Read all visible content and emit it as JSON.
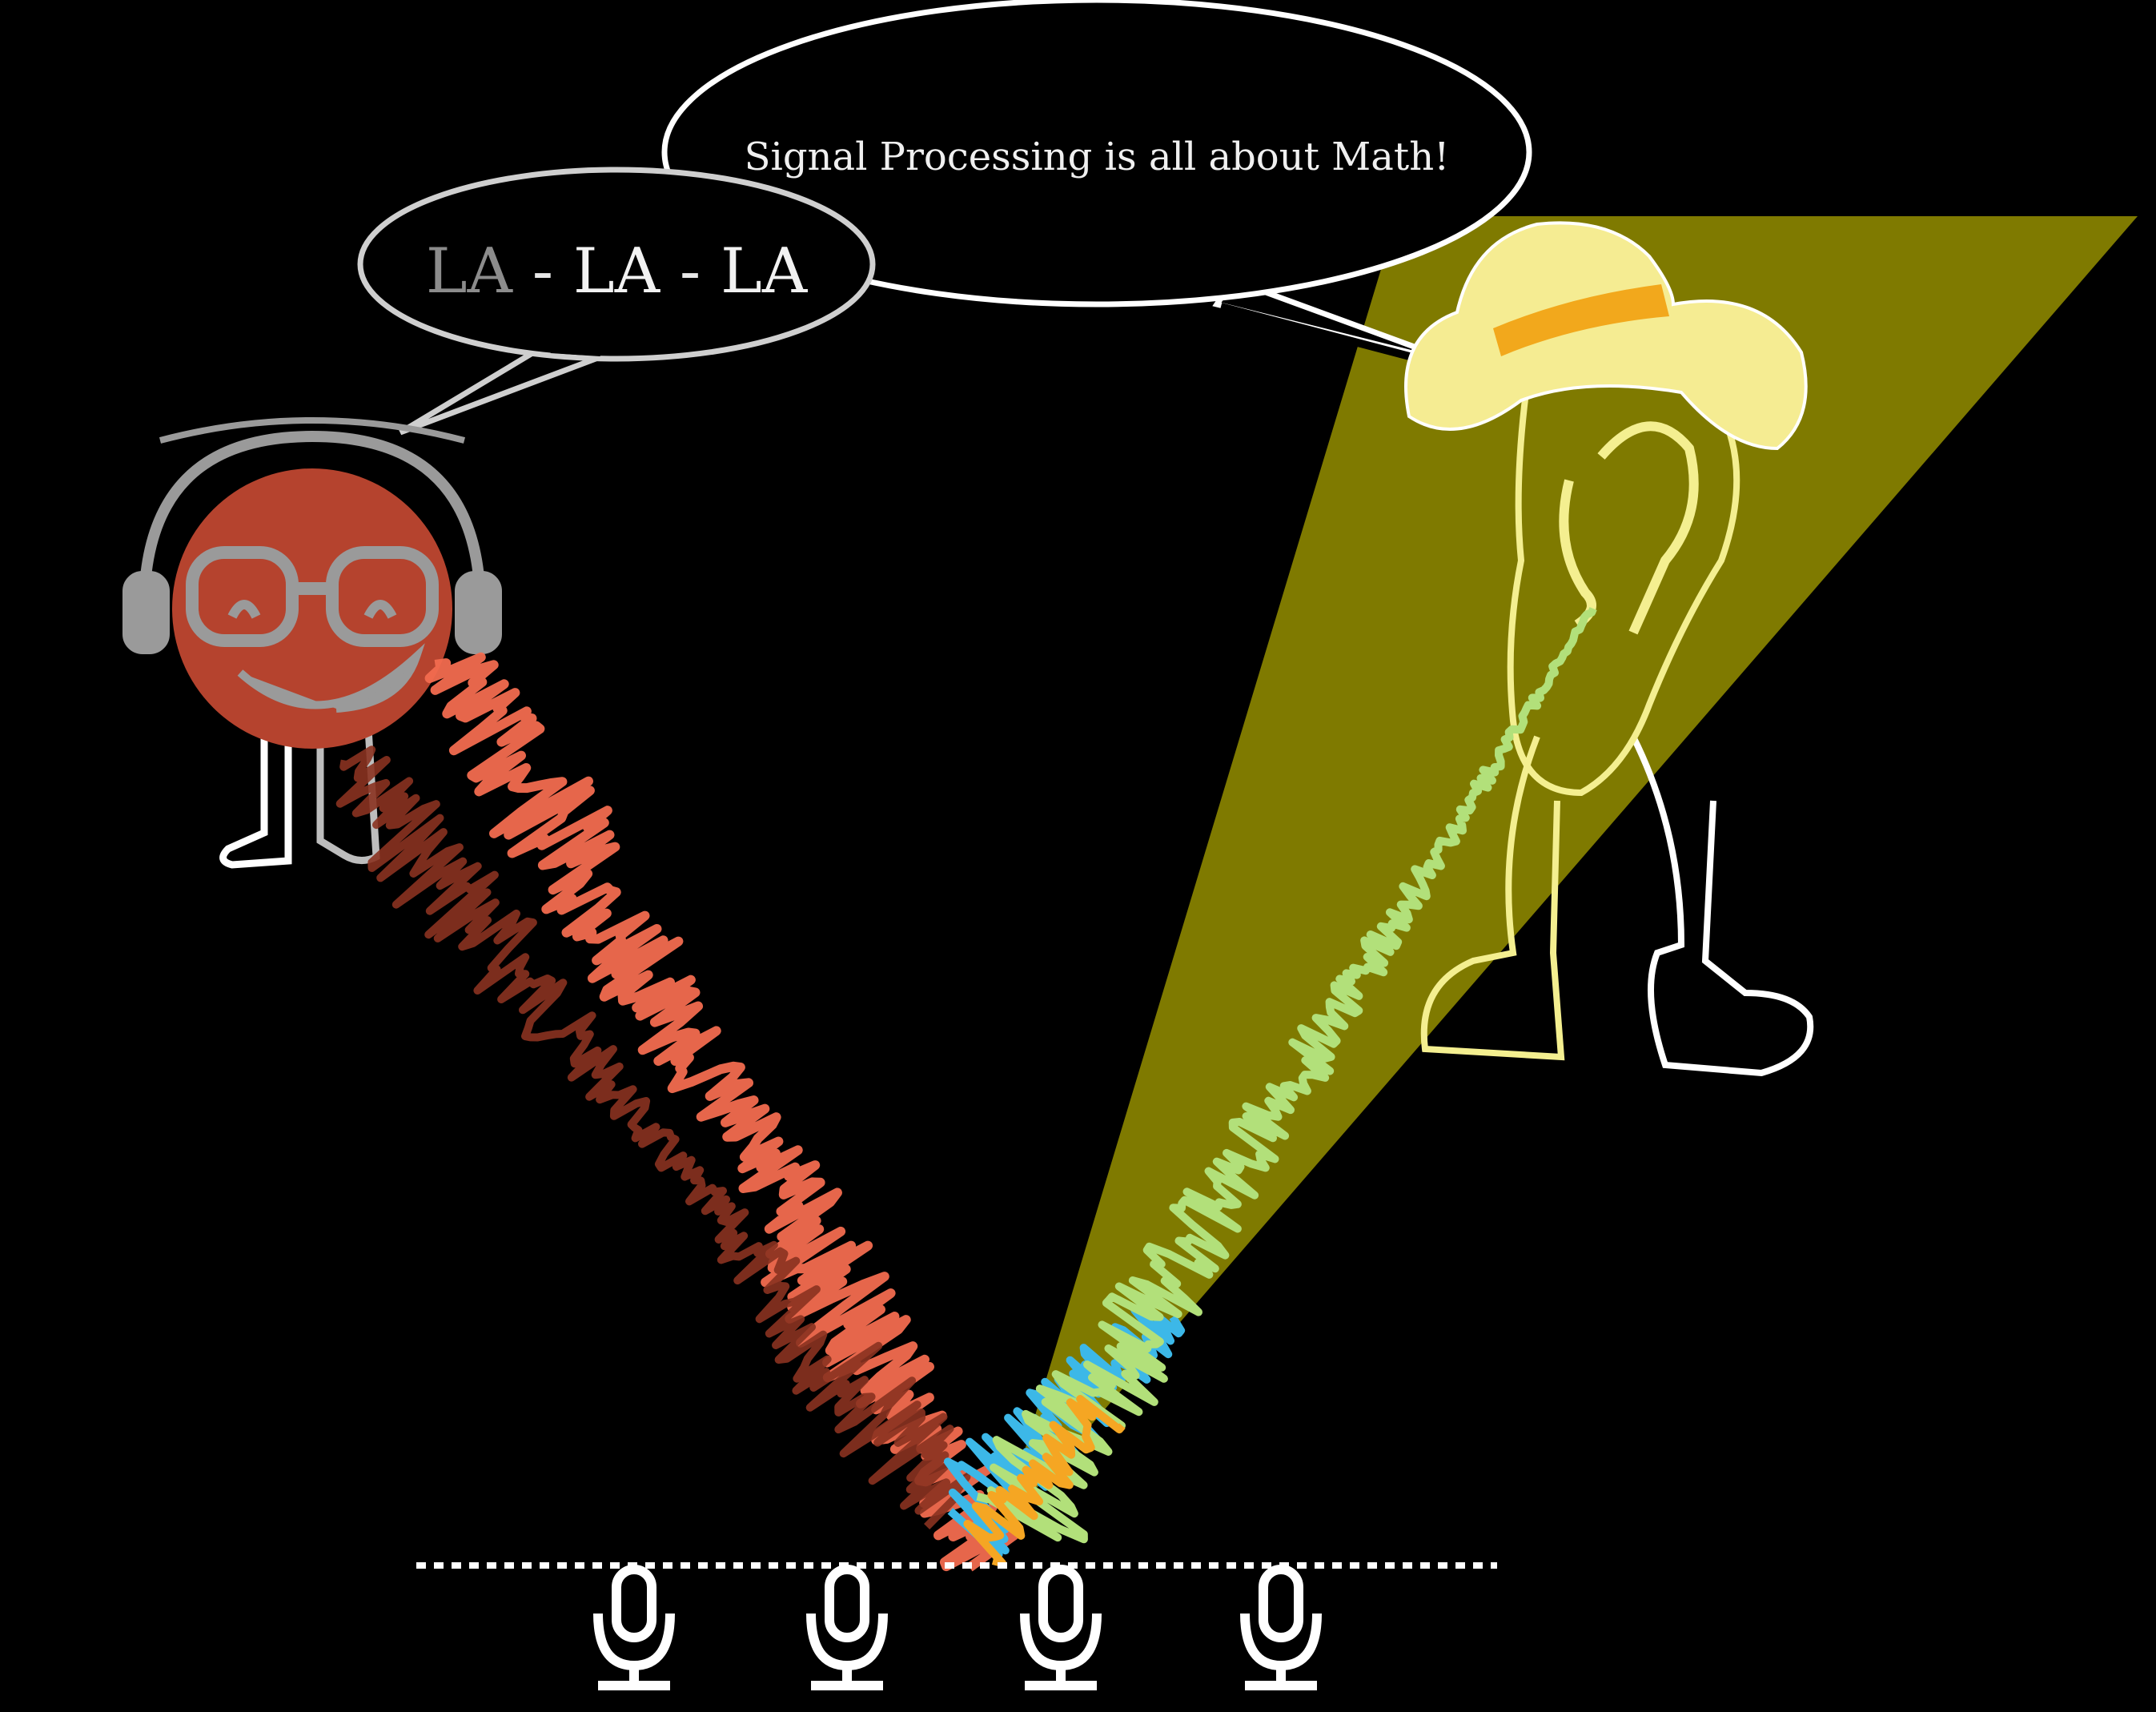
{
  "speech": {
    "singer_text": "LA - LA - LA",
    "singer_parts": [
      "LA",
      " - ",
      "LA",
      " - ",
      "LA"
    ],
    "ear_text": "Signal Processing is all about Math!"
  },
  "colors": {
    "background": "#000000",
    "singer_face": "#b5432e",
    "headphones": "#9a9a9a",
    "beam": "#7f7a00",
    "ear_character": "#f4ef90",
    "hat": "#f5ec92",
    "hat_band": "#f2a81c",
    "signal_red": "#f26c4f",
    "signal_dark_red": "#8a3220",
    "signal_green": "#b2e07a",
    "signal_blue": "#3cb8e8",
    "signal_orange": "#f5a623",
    "microphone": "#ffffff",
    "array_line": "#ffffff"
  },
  "icons": [
    "singer-character",
    "headphones-icon",
    "ear-character",
    "sun-hat-icon",
    "microphone-icon"
  ],
  "microphones": [
    {
      "id": "mic-1"
    },
    {
      "id": "mic-2"
    },
    {
      "id": "mic-3"
    },
    {
      "id": "mic-4"
    }
  ]
}
